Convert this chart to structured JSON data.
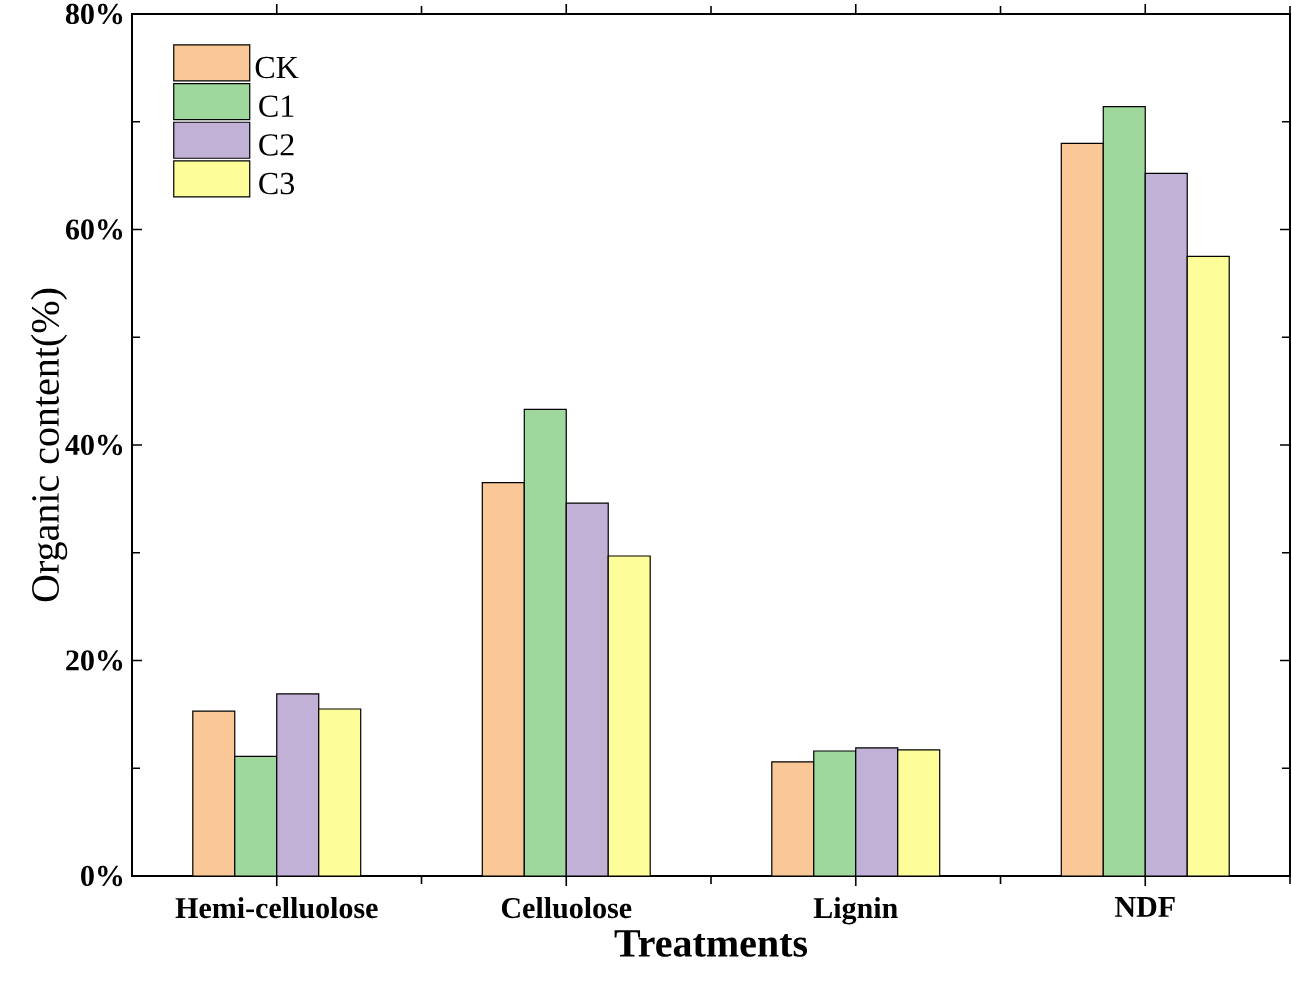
{
  "chart_data": {
    "type": "bar",
    "xlabel": "Treatments",
    "ylabel": "Organic content(%)",
    "categories": [
      "Hemi-celluolose",
      "Celluolose",
      "Lignin",
      "NDF"
    ],
    "series": [
      {
        "name": "CK",
        "color": "#f9c896",
        "values": [
          15.3,
          36.5,
          10.6,
          68.0
        ]
      },
      {
        "name": "C1",
        "color": "#9ed89c",
        "values": [
          11.1,
          43.3,
          11.6,
          71.4
        ]
      },
      {
        "name": "C2",
        "color": "#c2b1d6",
        "values": [
          16.9,
          34.6,
          11.9,
          65.2
        ]
      },
      {
        "name": "C3",
        "color": "#fdfd9a",
        "values": [
          15.5,
          29.7,
          11.7,
          57.5
        ]
      }
    ],
    "ylim": [
      0,
      80
    ],
    "yticks": [
      {
        "value": 0,
        "label": "0%"
      },
      {
        "value": 10,
        "label": null
      },
      {
        "value": 20,
        "label": "20%"
      },
      {
        "value": 30,
        "label": null
      },
      {
        "value": 40,
        "label": "40%"
      },
      {
        "value": 50,
        "label": null
      },
      {
        "value": 60,
        "label": "60%"
      },
      {
        "value": 70,
        "label": null
      },
      {
        "value": 80,
        "label": "80%"
      }
    ],
    "legend": "top left",
    "grid": false
  }
}
